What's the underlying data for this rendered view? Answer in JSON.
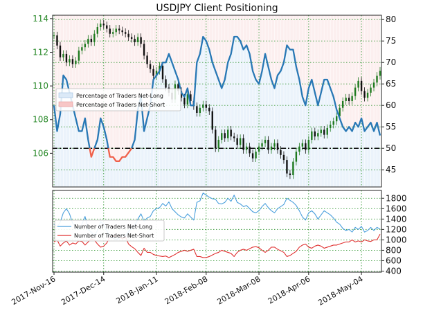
{
  "chart_data": [
    {
      "type": "line",
      "title": "USDJPY Client Positioning",
      "left_axis": {
        "ticks": [
          106,
          108,
          110,
          112,
          114
        ],
        "ylim": [
          104,
          114.2
        ]
      },
      "right_axis": {
        "ticks": [
          45,
          50,
          55,
          60,
          65,
          70,
          75,
          80
        ],
        "ylim": [
          41,
          81
        ]
      },
      "reference_line": {
        "axis": "right",
        "value": 50
      },
      "legend": {
        "placement": "left",
        "entries": [
          "Percentage of Traders Net-Long",
          "Percentage of Traders Net-Short"
        ]
      },
      "series": [
        {
          "name": "Percentage of Traders Net-Long",
          "axis": "right",
          "color": "#2878b5",
          "values": [
            60,
            54,
            58,
            67,
            66,
            63,
            60,
            57,
            54,
            54,
            57,
            52,
            48,
            50,
            52,
            57,
            55,
            52,
            48,
            48,
            47,
            47,
            48,
            48,
            49,
            50,
            52,
            59,
            62,
            54,
            57,
            60,
            66,
            67,
            68,
            70,
            70,
            72,
            70,
            68,
            66,
            63,
            62,
            64,
            60,
            60,
            70,
            72,
            76,
            75,
            73,
            70,
            68,
            66,
            64,
            66,
            70,
            72,
            76,
            76,
            75,
            73,
            74,
            72,
            68,
            66,
            65,
            68,
            72,
            69,
            66,
            64,
            67,
            68,
            70,
            74,
            73,
            73,
            69,
            66,
            62,
            60,
            64,
            66,
            63,
            60,
            63,
            66,
            66,
            64,
            62,
            59,
            57,
            55,
            54,
            55,
            54,
            56,
            55,
            57,
            54,
            55,
            56,
            54,
            56,
            53
          ]
        },
        {
          "name": "USDJPY",
          "axis": "left",
          "color": "#1f7a1f",
          "values": [
            113.0,
            112.4,
            111.7,
            111.9,
            111.4,
            111.6,
            111.3,
            111.5,
            112.1,
            112.3,
            112.5,
            112.8,
            112.6,
            113.1,
            113.5,
            113.7,
            113.6,
            113.4,
            113.1,
            113.2,
            113.4,
            113.3,
            113.2,
            113.1,
            112.9,
            112.8,
            112.6,
            112.9,
            112.5,
            111.8,
            111.3,
            111.0,
            110.6,
            110.9,
            111.2,
            110.4,
            109.9,
            109.6,
            109.2,
            110.1,
            109.7,
            109.3,
            108.9,
            109.5,
            109.1,
            108.8,
            108.4,
            108.7,
            108.9,
            108.7,
            108.5,
            107.4,
            106.3,
            106.8,
            107.2,
            106.9,
            107.4,
            107.0,
            106.9,
            106.5,
            106.9,
            106.2,
            106.4,
            106.0,
            105.7,
            106.1,
            106.4,
            106.6,
            106.8,
            106.2,
            106.4,
            106.6,
            106.2,
            105.9,
            105.6,
            104.8,
            104.7,
            105.5,
            106.1,
            106.4,
            106.6,
            106.2,
            106.8,
            107.3,
            107.0,
            107.2,
            107.4,
            107.1,
            107.5,
            107.7,
            107.9,
            108.2,
            108.7,
            109.1,
            109.3,
            109.1,
            109.4,
            109.9,
            110.3,
            109.7,
            109.3,
            109.6,
            109.9,
            110.2,
            110.6,
            110.9
          ]
        }
      ]
    },
    {
      "type": "line",
      "right_axis": {
        "ticks": [
          400,
          600,
          800,
          1000,
          1200,
          1400,
          1600,
          1800
        ],
        "ylim": [
          380,
          1950
        ]
      },
      "legend": {
        "placement": "left",
        "entries": [
          "Number of Traders Net-Long",
          "Number of Traders Net-Short"
        ]
      },
      "series": [
        {
          "name": "Number of Traders Net-Long",
          "color": "#4a9fdc",
          "values": [
            1300,
            1250,
            1340,
            1520,
            1600,
            1500,
            1320,
            1240,
            1200,
            1300,
            1450,
            1200,
            1150,
            1080,
            1180,
            1350,
            1300,
            1180,
            1040,
            1040,
            1000,
            1040,
            1100,
            1060,
            1160,
            1220,
            1280,
            1400,
            1500,
            1360,
            1420,
            1450,
            1560,
            1600,
            1620,
            1700,
            1650,
            1730,
            1600,
            1540,
            1480,
            1440,
            1420,
            1500,
            1440,
            1380,
            1720,
            1750,
            1900,
            1860,
            1820,
            1790,
            1780,
            1700,
            1690,
            1720,
            1800,
            1740,
            1860,
            1720,
            1690,
            1640,
            1660,
            1600,
            1540,
            1520,
            1560,
            1640,
            1700,
            1620,
            1560,
            1520,
            1600,
            1640,
            1680,
            1800,
            1760,
            1720,
            1660,
            1560,
            1440,
            1380,
            1520,
            1560,
            1500,
            1400,
            1480,
            1560,
            1520,
            1480,
            1420,
            1340,
            1300,
            1220,
            1180,
            1200,
            1150,
            1240,
            1200,
            1260,
            1150,
            1180,
            1240,
            1180,
            1240,
            1210
          ]
        },
        {
          "name": "Number of Traders Net-Short",
          "color": "#e03030",
          "values": [
            960,
            1000,
            880,
            940,
            980,
            900,
            940,
            920,
            980,
            970,
            900,
            960,
            1020,
            1000,
            920,
            860,
            880,
            940,
            1060,
            1060,
            1080,
            1070,
            1020,
            1060,
            920,
            870,
            830,
            760,
            700,
            840,
            760,
            760,
            720,
            700,
            690,
            680,
            690,
            660,
            690,
            720,
            760,
            780,
            800,
            780,
            800,
            820,
            680,
            680,
            660,
            660,
            680,
            710,
            740,
            760,
            800,
            780,
            760,
            740,
            680,
            760,
            800,
            820,
            800,
            830,
            860,
            870,
            850,
            800,
            760,
            800,
            860,
            860,
            820,
            790,
            760,
            680,
            700,
            740,
            780,
            860,
            900,
            920,
            860,
            840,
            880,
            900,
            880,
            840,
            860,
            880,
            900,
            900,
            920,
            940,
            960,
            960,
            1000,
            960,
            980,
            960,
            1000,
            980,
            970,
            1000,
            1000,
            1110
          ]
        }
      ]
    }
  ],
  "x_axis": {
    "ticks": [
      "2017-Nov-16",
      "2017-Dec-14",
      "2018-Jan-11",
      "2018-Feb-08",
      "2018-Mar-08",
      "2018-Apr-06",
      "2018-May-04"
    ]
  }
}
